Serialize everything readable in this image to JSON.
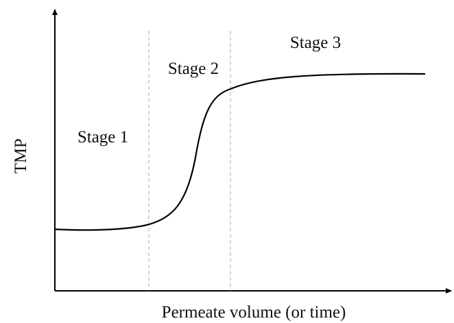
{
  "axes": {
    "x_label": "Permeate volume (or time)",
    "y_label": "TMP"
  },
  "stages": [
    "Stage 1",
    "Stage 2",
    "Stage 3"
  ]
}
